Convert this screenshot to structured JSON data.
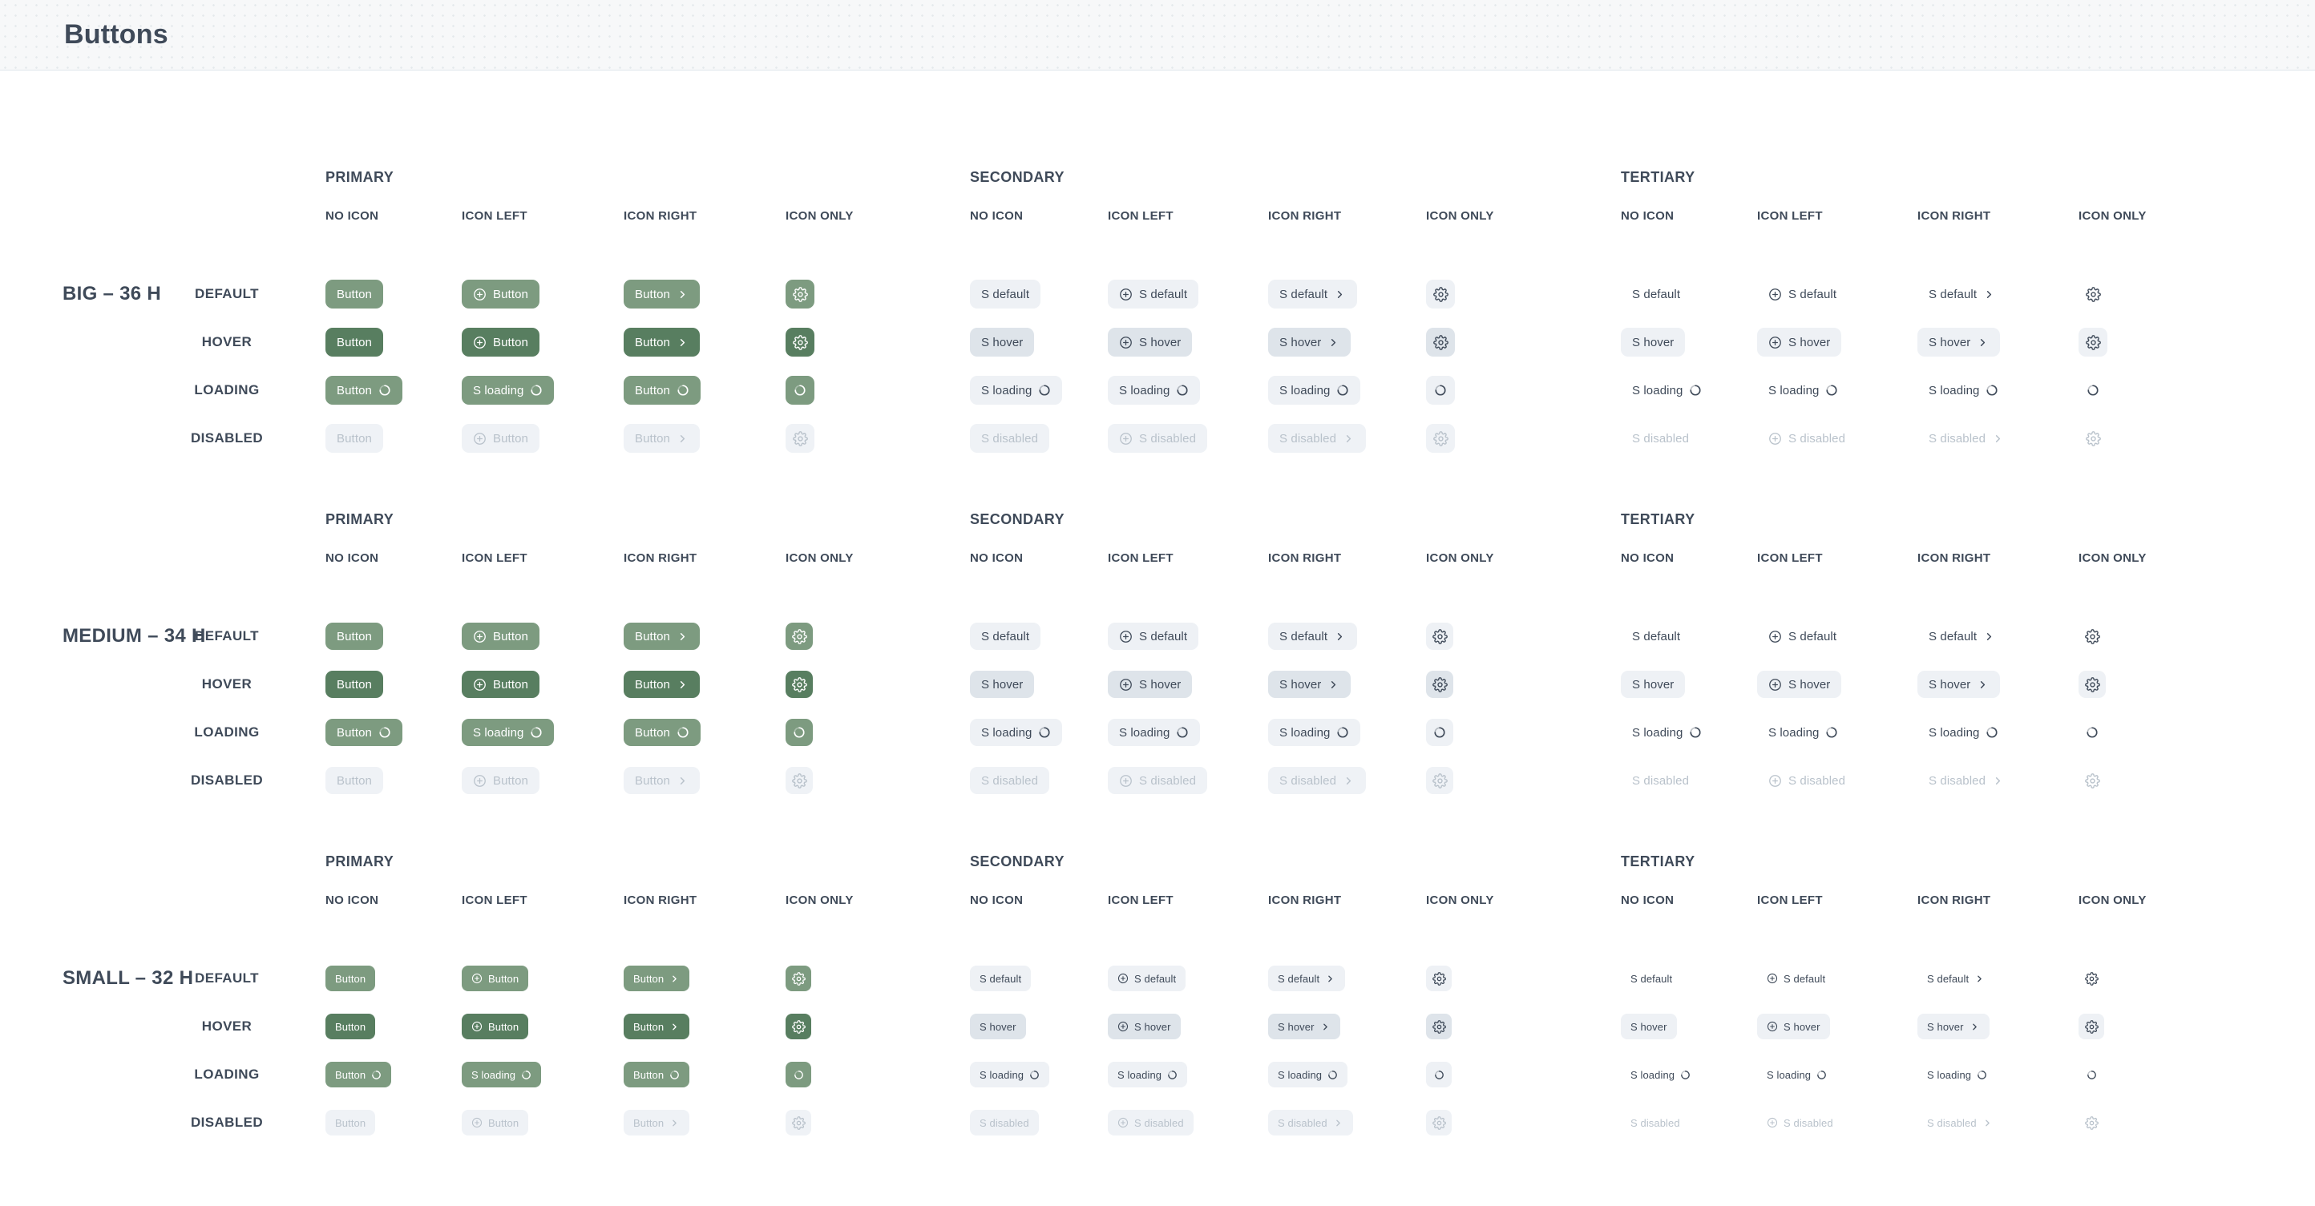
{
  "header": {
    "title": "Buttons"
  },
  "groups": [
    "PRIMARY",
    "SECONDARY",
    "TERTIARY"
  ],
  "columns": [
    "NO ICON",
    "ICON LEFT",
    "ICON RIGHT",
    "ICON ONLY"
  ],
  "states": [
    "DEFAULT",
    "HOVER",
    "LOADING",
    "DISABLED"
  ],
  "sections": [
    {
      "id": "big",
      "size_label": "BIG – 36 H",
      "height": 36
    },
    {
      "id": "medium",
      "size_label": "MEDIUM – 34 H",
      "height": 34
    },
    {
      "id": "small",
      "size_label": "SMALL – 32 H",
      "height": 32
    }
  ],
  "button_labels": {
    "primary": {
      "default": [
        "Button",
        "Button",
        "Button"
      ],
      "hover": [
        "Button",
        "Button",
        "Button"
      ],
      "loading": [
        "Button",
        "S loading",
        "Button"
      ],
      "disabled": [
        "Button",
        "Button",
        "Button"
      ]
    },
    "secondary": {
      "default": [
        "S default",
        "S default",
        "S default"
      ],
      "hover": [
        "S hover",
        "S hover",
        "S hover"
      ],
      "loading": [
        "S loading",
        "S loading",
        "S loading"
      ],
      "disabled": [
        "S disabled",
        "S disabled",
        "S disabled"
      ]
    },
    "tertiary": {
      "default": [
        "S default",
        "S default",
        "S default"
      ],
      "hover": [
        "S hover",
        "S hover",
        "S hover"
      ],
      "loading": [
        "S loading",
        "S loading",
        "S loading"
      ],
      "disabled": [
        "S disabled",
        "S disabled",
        "S disabled"
      ]
    }
  },
  "icons": {
    "icon_left": "plus-circle-icon",
    "icon_right": "chevron-right-icon",
    "icon_only": "gear-icon",
    "loading": "spinner-icon"
  },
  "colors": {
    "page_bg": "#FFFFFF",
    "header_bg": "#F7F8F9",
    "header_dot": "#E4E9EC",
    "header_border": "#DFE6EC",
    "heading_text": "#3F4A59",
    "primary_bg": "#7D9B80",
    "primary_hover_bg": "#587E60",
    "primary_text": "#FFFFFF",
    "secondary_bg": "#EEF1F5",
    "secondary_hover_bg": "#DEE4EA",
    "secondary_text": "#3F4A59",
    "tertiary_hover_bg": "#EEF1F5",
    "disabled_bg": "#EFF2F6",
    "disabled_text": "#B9C2CB"
  }
}
